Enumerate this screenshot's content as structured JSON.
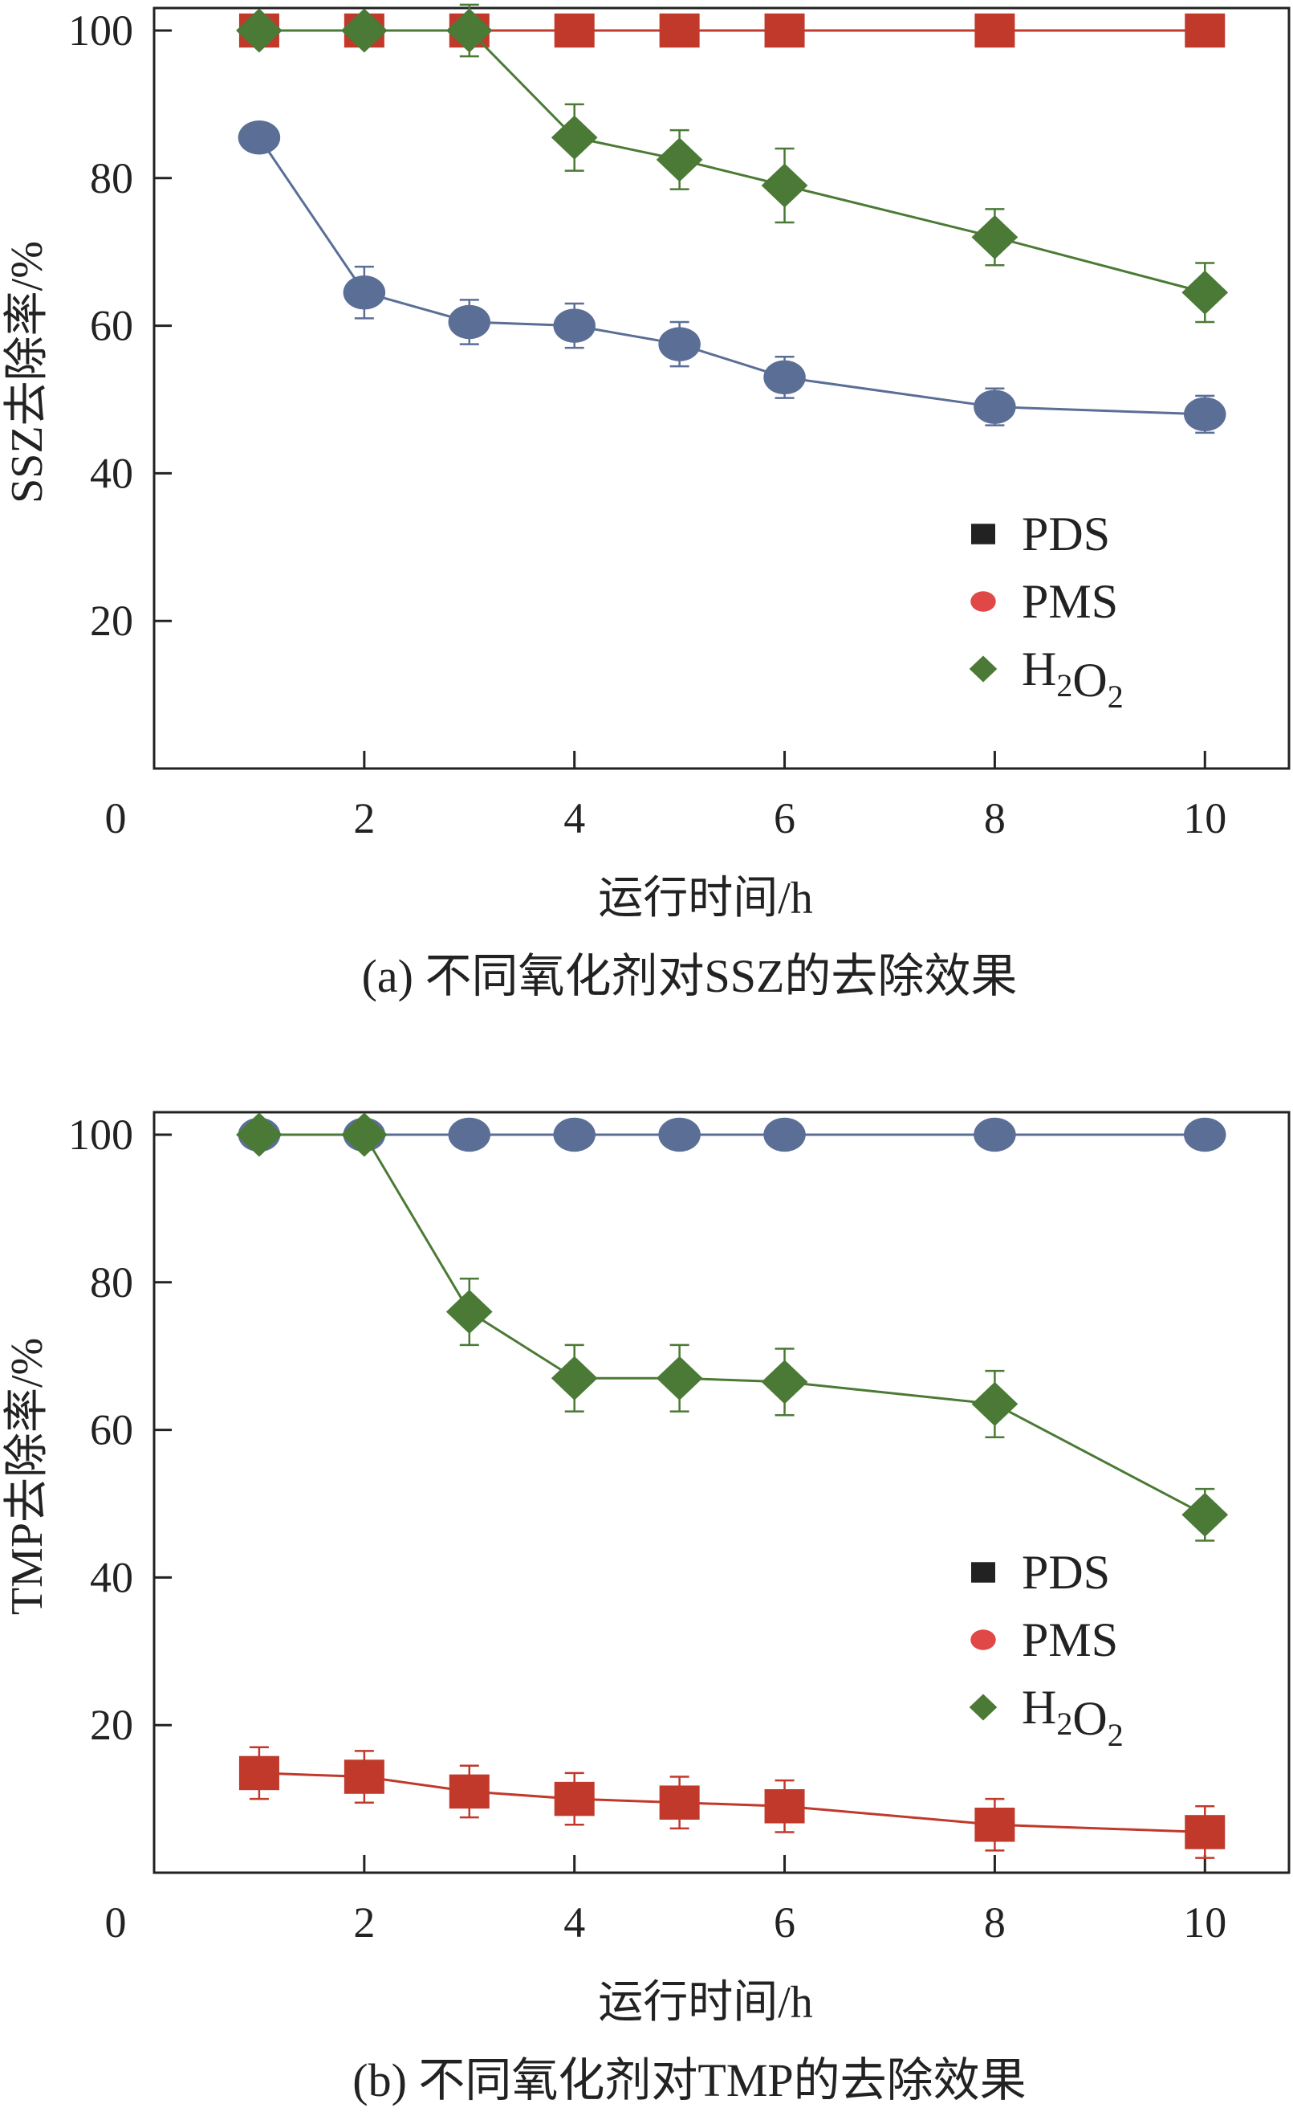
{
  "colors": {
    "PDS": "#c0392b",
    "PMS": "#5b6e96",
    "H2O2": "#4a7a35",
    "axis": "#222222"
  },
  "chart_data": [
    {
      "type": "line",
      "caption": "(a) 不同氧化剂对SSZ的去除效果",
      "xlabel": "运行时间/h",
      "ylabel": "SSZ去除率/%",
      "xlim": [
        0,
        10.8
      ],
      "ylim": [
        0,
        100
      ],
      "xticks": [
        0,
        2,
        4,
        6,
        8,
        10
      ],
      "yticks": [
        20,
        40,
        60,
        80,
        100
      ],
      "x": [
        1,
        2,
        3,
        4,
        5,
        6,
        8,
        10
      ],
      "legend": {
        "position": "lower-right",
        "entries": [
          {
            "label": "PDS",
            "marker": "square",
            "color": "#222222"
          },
          {
            "label": "PMS",
            "marker": "circle",
            "color": "#e04848"
          },
          {
            "label": "H₂O₂",
            "marker": "diamond",
            "color": "#4a7a35"
          }
        ]
      },
      "series": [
        {
          "key": "PDS",
          "marker": "square",
          "values": [
            100,
            100,
            100,
            100,
            100,
            100,
            100,
            100
          ],
          "errors": [
            0,
            0,
            0,
            0,
            0,
            0,
            0,
            0
          ]
        },
        {
          "key": "PMS",
          "marker": "circle",
          "values": [
            85.5,
            64.5,
            60.5,
            60,
            57.5,
            53,
            49,
            48
          ],
          "errors": [
            0,
            3.5,
            3,
            3,
            3,
            2.8,
            2.5,
            2.5
          ]
        },
        {
          "key": "H2O2",
          "marker": "diamond",
          "values": [
            100,
            100,
            100,
            85.5,
            82.5,
            79,
            72,
            64.5
          ],
          "errors": [
            0,
            0,
            3.5,
            4.5,
            4,
            5,
            3.8,
            4
          ]
        }
      ]
    },
    {
      "type": "line",
      "caption": "(b) 不同氧化剂对TMP的去除效果",
      "xlabel": "运行时间/h",
      "ylabel": "TMP去除率/%",
      "xlim": [
        0,
        10.8
      ],
      "ylim": [
        0,
        100
      ],
      "xticks": [
        0,
        2,
        4,
        6,
        8,
        10
      ],
      "yticks": [
        20,
        40,
        60,
        80,
        100
      ],
      "x": [
        1,
        2,
        3,
        4,
        5,
        6,
        8,
        10
      ],
      "legend": {
        "position": "lower-right",
        "entries": [
          {
            "label": "PDS",
            "marker": "square",
            "color": "#222222"
          },
          {
            "label": "PMS",
            "marker": "circle",
            "color": "#e04848"
          },
          {
            "label": "H₂O₂",
            "marker": "diamond",
            "color": "#4a7a35"
          }
        ]
      },
      "series": [
        {
          "key": "PDS",
          "marker": "square",
          "values": [
            13.5,
            13,
            11,
            10,
            9.5,
            9,
            6.5,
            5.5
          ],
          "errors": [
            3.5,
            3.5,
            3.5,
            3.5,
            3.5,
            3.5,
            3.5,
            3.5
          ]
        },
        {
          "key": "PMS",
          "marker": "circle",
          "values": [
            100,
            100,
            100,
            100,
            100,
            100,
            100,
            100
          ],
          "errors": [
            0,
            0,
            0,
            0,
            0,
            0,
            0,
            0
          ]
        },
        {
          "key": "H2O2",
          "marker": "diamond",
          "values": [
            100,
            100,
            76,
            67,
            67,
            66.5,
            63.5,
            48.5
          ],
          "errors": [
            0,
            0,
            4.5,
            4.5,
            4.5,
            4.5,
            4.5,
            3.5
          ]
        }
      ]
    }
  ]
}
